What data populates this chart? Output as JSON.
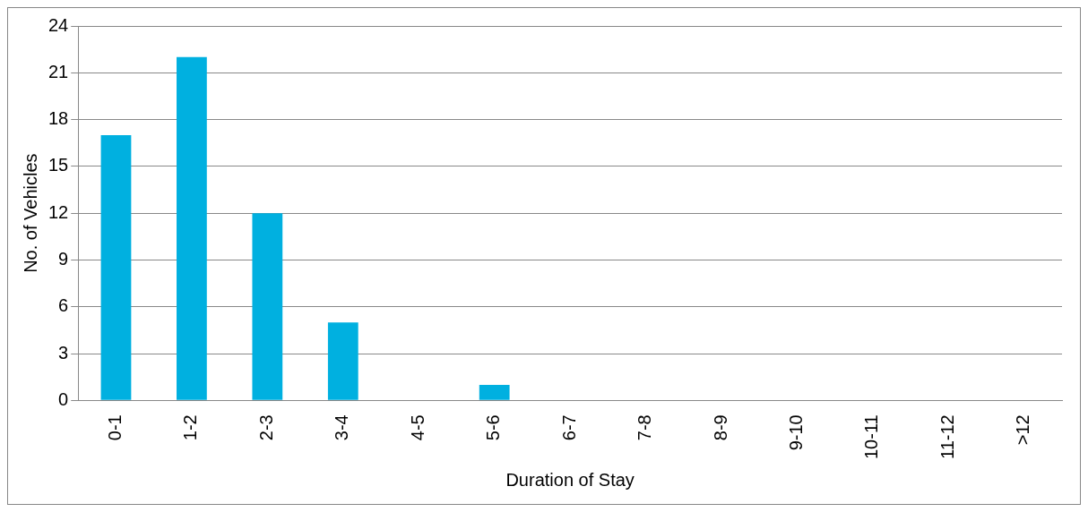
{
  "chart_data": {
    "type": "bar",
    "xlabel": "Duration of Stay",
    "ylabel": "No. of Vehicles",
    "categories": [
      "0-1",
      "1-2",
      "2-3",
      "3-4",
      "4-5",
      "5-6",
      "6-7",
      "7-8",
      "8-9",
      "9-10",
      "10-11",
      "11-12",
      ">12"
    ],
    "values": [
      17,
      22,
      12,
      5,
      0,
      1,
      0,
      0,
      0,
      0,
      0,
      0,
      0
    ],
    "color": "#00b0e0",
    "ylim": [
      0,
      24
    ],
    "yticks": [
      0,
      3,
      6,
      9,
      12,
      15,
      18,
      21,
      24
    ],
    "grid": "y",
    "legend": false
  }
}
